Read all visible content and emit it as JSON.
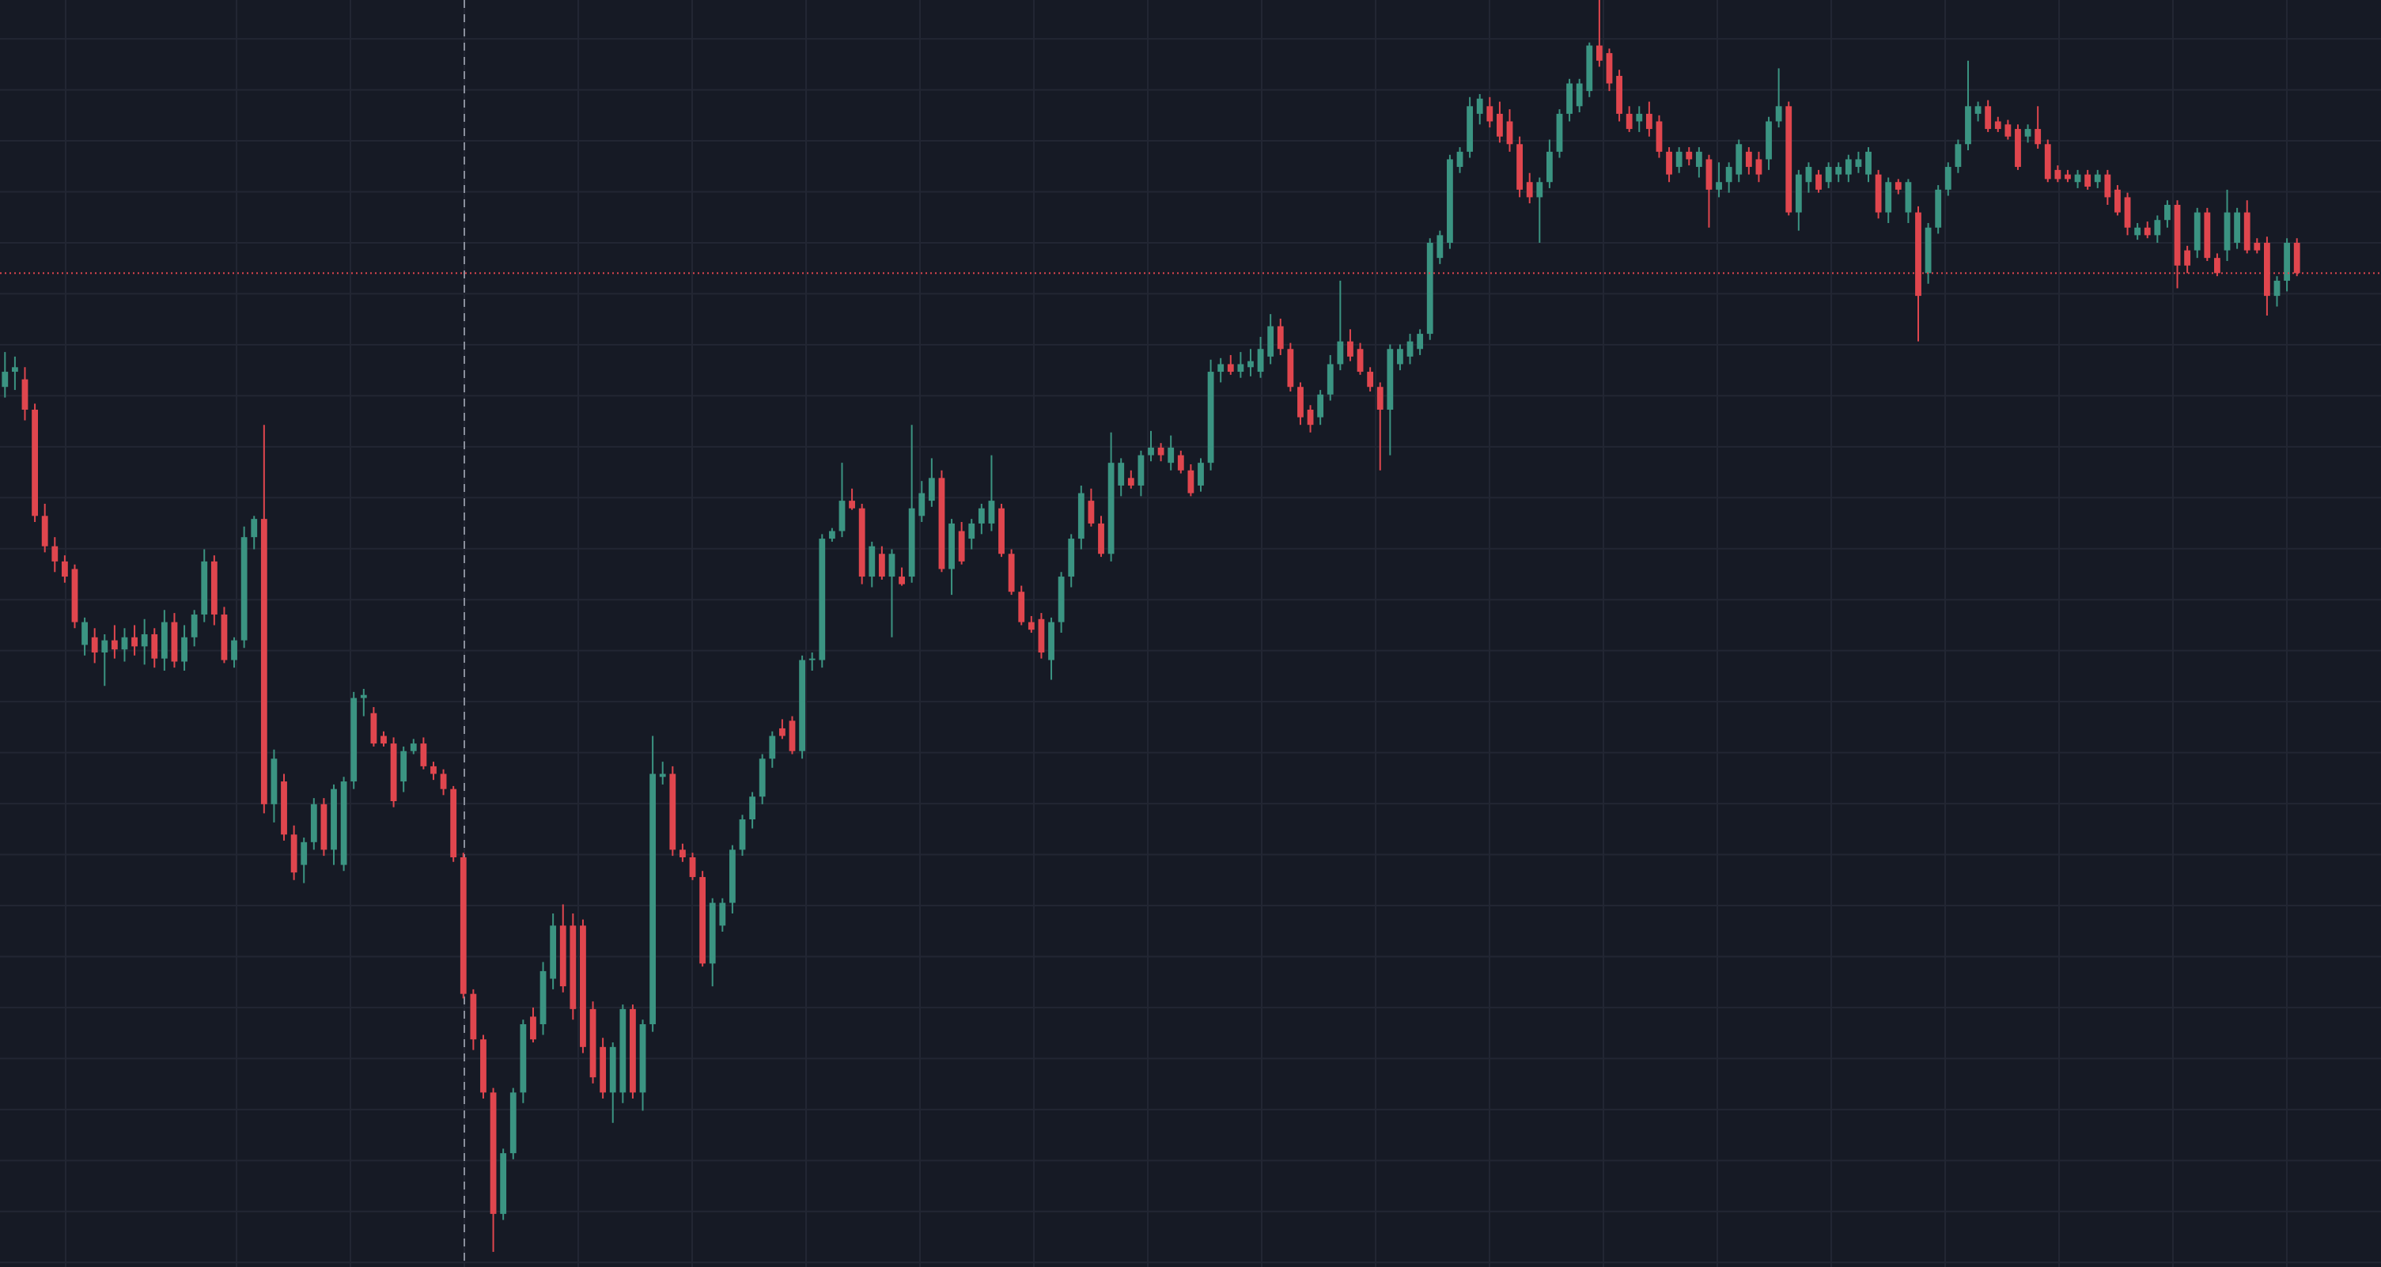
{
  "chart_data": {
    "type": "candlestick",
    "up_color": "#3b9482",
    "down_color": "#e0464e",
    "price_line_color": "#e0464e",
    "ylim": [
      -3,
      832
    ],
    "yticks": [
      0,
      33.6,
      67.2,
      100.8,
      134.4,
      168,
      201.6,
      235.2,
      268.8,
      302.4,
      336,
      369.6,
      403.2,
      436.8,
      470.4,
      504,
      537.6,
      571.2,
      604.8,
      638.4,
      672,
      705.6,
      739.2,
      772.8,
      806.4
    ],
    "grid": true,
    "price_line": 652,
    "candles": [
      [
        577,
        600,
        570,
        587
      ],
      [
        587,
        597,
        575,
        590
      ],
      [
        582,
        590,
        555,
        562
      ],
      [
        562,
        566,
        488,
        492
      ],
      [
        492,
        500,
        468,
        472
      ],
      [
        472,
        478,
        455,
        462
      ],
      [
        462,
        466,
        448,
        452
      ],
      [
        457,
        460,
        418,
        422
      ],
      [
        407,
        425,
        400,
        422
      ],
      [
        412,
        418,
        395,
        402
      ],
      [
        402,
        414,
        380,
        410
      ],
      [
        410,
        420,
        398,
        404
      ],
      [
        404,
        418,
        396,
        412
      ],
      [
        412,
        420,
        400,
        406
      ],
      [
        406,
        424,
        394,
        414
      ],
      [
        414,
        418,
        392,
        398
      ],
      [
        398,
        430,
        390,
        422
      ],
      [
        422,
        428,
        392,
        396
      ],
      [
        396,
        420,
        390,
        412
      ],
      [
        412,
        430,
        406,
        427
      ],
      [
        427,
        470,
        422,
        462
      ],
      [
        462,
        466,
        420,
        427
      ],
      [
        427,
        432,
        395,
        397
      ],
      [
        397,
        412,
        392,
        410
      ],
      [
        410,
        485,
        405,
        478
      ],
      [
        478,
        492,
        470,
        490
      ],
      [
        490,
        552,
        296,
        302
      ],
      [
        302,
        338,
        290,
        332
      ],
      [
        317,
        322,
        278,
        282
      ],
      [
        282,
        288,
        252,
        257
      ],
      [
        262,
        280,
        250,
        277
      ],
      [
        277,
        306,
        272,
        302
      ],
      [
        302,
        306,
        268,
        272
      ],
      [
        272,
        315,
        262,
        312
      ],
      [
        262,
        320,
        258,
        317
      ],
      [
        317,
        376,
        312,
        372
      ],
      [
        372,
        378,
        360,
        374
      ],
      [
        362,
        366,
        340,
        342
      ],
      [
        347,
        350,
        340,
        342
      ],
      [
        342,
        346,
        300,
        304
      ],
      [
        317,
        340,
        310,
        337
      ],
      [
        337,
        345,
        335,
        342
      ],
      [
        342,
        346,
        325,
        327
      ],
      [
        327,
        330,
        318,
        322
      ],
      [
        322,
        325,
        308,
        312
      ],
      [
        312,
        314,
        264,
        267
      ],
      [
        267,
        270,
        174,
        177
      ],
      [
        177,
        180,
        140,
        147
      ],
      [
        147,
        150,
        108,
        112
      ],
      [
        112,
        115,
        7,
        32
      ],
      [
        32,
        75,
        28,
        72
      ],
      [
        72,
        115,
        68,
        112
      ],
      [
        112,
        160,
        105,
        157
      ],
      [
        162,
        168,
        145,
        147
      ],
      [
        157,
        198,
        150,
        192
      ],
      [
        187,
        230,
        180,
        222
      ],
      [
        222,
        236,
        178,
        182
      ],
      [
        222,
        230,
        160,
        167
      ],
      [
        222,
        226,
        138,
        142
      ],
      [
        167,
        172,
        118,
        122
      ],
      [
        142,
        148,
        108,
        112
      ],
      [
        112,
        145,
        92,
        142
      ],
      [
        112,
        170,
        105,
        167
      ],
      [
        167,
        170,
        108,
        112
      ],
      [
        112,
        160,
        100,
        157
      ],
      [
        157,
        347,
        152,
        322
      ],
      [
        320,
        330,
        315,
        322
      ],
      [
        322,
        327,
        268,
        272
      ],
      [
        272,
        276,
        264,
        267
      ],
      [
        267,
        270,
        252,
        254
      ],
      [
        254,
        258,
        195,
        197
      ],
      [
        197,
        240,
        182,
        237
      ],
      [
        222,
        240,
        218,
        237
      ],
      [
        237,
        275,
        230,
        272
      ],
      [
        272,
        295,
        268,
        292
      ],
      [
        292,
        310,
        286,
        307
      ],
      [
        307,
        335,
        302,
        332
      ],
      [
        332,
        350,
        326,
        347
      ],
      [
        352,
        358,
        345,
        347
      ],
      [
        357,
        360,
        335,
        337
      ],
      [
        337,
        400,
        332,
        397
      ],
      [
        397,
        402,
        390,
        398
      ],
      [
        397,
        480,
        392,
        477
      ],
      [
        477,
        484,
        475,
        482
      ],
      [
        482,
        527,
        478,
        502
      ],
      [
        502,
        510,
        496,
        497
      ],
      [
        497,
        500,
        447,
        452
      ],
      [
        452,
        475,
        445,
        472
      ],
      [
        467,
        472,
        450,
        452
      ],
      [
        452,
        470,
        412,
        467
      ],
      [
        452,
        458,
        446,
        447
      ],
      [
        452,
        552,
        448,
        497
      ],
      [
        492,
        515,
        488,
        507
      ],
      [
        502,
        530,
        498,
        517
      ],
      [
        517,
        522,
        455,
        457
      ],
      [
        457,
        490,
        440,
        487
      ],
      [
        482,
        488,
        460,
        462
      ],
      [
        477,
        490,
        470,
        487
      ],
      [
        487,
        500,
        480,
        497
      ],
      [
        487,
        532,
        482,
        502
      ],
      [
        497,
        500,
        465,
        467
      ],
      [
        467,
        470,
        440,
        442
      ],
      [
        442,
        446,
        420,
        422
      ],
      [
        422,
        426,
        415,
        417
      ],
      [
        424,
        428,
        398,
        402
      ],
      [
        397,
        425,
        384,
        422
      ],
      [
        422,
        455,
        415,
        452
      ],
      [
        452,
        480,
        445,
        477
      ],
      [
        477,
        512,
        470,
        507
      ],
      [
        502,
        510,
        485,
        487
      ],
      [
        487,
        492,
        465,
        467
      ],
      [
        467,
        547,
        462,
        527
      ],
      [
        512,
        530,
        505,
        527
      ],
      [
        517,
        522,
        510,
        512
      ],
      [
        512,
        535,
        505,
        532
      ],
      [
        532,
        548,
        528,
        537
      ],
      [
        537,
        540,
        528,
        532
      ],
      [
        527,
        545,
        522,
        537
      ],
      [
        532,
        535,
        520,
        522
      ],
      [
        522,
        526,
        505,
        507
      ],
      [
        512,
        530,
        508,
        527
      ],
      [
        527,
        595,
        522,
        587
      ],
      [
        587,
        596,
        580,
        592
      ],
      [
        592,
        598,
        585,
        587
      ],
      [
        587,
        600,
        583,
        592
      ],
      [
        590,
        602,
        584,
        594
      ],
      [
        587,
        610,
        583,
        602
      ],
      [
        597,
        625,
        592,
        617
      ],
      [
        617,
        622,
        598,
        602
      ],
      [
        602,
        606,
        574,
        577
      ],
      [
        577,
        580,
        552,
        557
      ],
      [
        562,
        565,
        547,
        552
      ],
      [
        557,
        575,
        552,
        572
      ],
      [
        572,
        598,
        568,
        592
      ],
      [
        592,
        647,
        588,
        607
      ],
      [
        607,
        615,
        594,
        597
      ],
      [
        602,
        606,
        585,
        587
      ],
      [
        587,
        590,
        574,
        577
      ],
      [
        577,
        580,
        522,
        562
      ],
      [
        562,
        605,
        532,
        602
      ],
      [
        592,
        605,
        588,
        602
      ],
      [
        597,
        612,
        592,
        607
      ],
      [
        602,
        615,
        598,
        612
      ],
      [
        612,
        675,
        608,
        672
      ],
      [
        662,
        680,
        658,
        677
      ],
      [
        672,
        730,
        668,
        727
      ],
      [
        722,
        735,
        718,
        732
      ],
      [
        732,
        768,
        728,
        762
      ],
      [
        757,
        770,
        750,
        767
      ],
      [
        762,
        768,
        748,
        752
      ],
      [
        757,
        765,
        738,
        742
      ],
      [
        752,
        760,
        732,
        737
      ],
      [
        737,
        742,
        702,
        707
      ],
      [
        712,
        718,
        698,
        702
      ],
      [
        702,
        715,
        672,
        712
      ],
      [
        712,
        740,
        708,
        732
      ],
      [
        732,
        760,
        728,
        757
      ],
      [
        757,
        780,
        752,
        777
      ],
      [
        762,
        780,
        758,
        777
      ],
      [
        772,
        804,
        768,
        802
      ],
      [
        802,
        832,
        788,
        792
      ],
      [
        797,
        800,
        772,
        777
      ],
      [
        782,
        786,
        752,
        757
      ],
      [
        757,
        762,
        745,
        747
      ],
      [
        752,
        762,
        745,
        757
      ],
      [
        757,
        765,
        742,
        747
      ],
      [
        752,
        756,
        728,
        732
      ],
      [
        732,
        735,
        712,
        717
      ],
      [
        722,
        735,
        718,
        732
      ],
      [
        732,
        735,
        723,
        727
      ],
      [
        722,
        735,
        715,
        732
      ],
      [
        727,
        730,
        682,
        707
      ],
      [
        707,
        725,
        702,
        712
      ],
      [
        712,
        725,
        705,
        722
      ],
      [
        717,
        740,
        712,
        737
      ],
      [
        732,
        735,
        717,
        722
      ],
      [
        727,
        732,
        712,
        717
      ],
      [
        727,
        755,
        720,
        752
      ],
      [
        752,
        787,
        748,
        762
      ],
      [
        762,
        765,
        690,
        692
      ],
      [
        692,
        720,
        680,
        717
      ],
      [
        712,
        725,
        705,
        722
      ],
      [
        717,
        720,
        705,
        707
      ],
      [
        712,
        725,
        708,
        722
      ],
      [
        717,
        725,
        712,
        722
      ],
      [
        717,
        730,
        712,
        727
      ],
      [
        722,
        732,
        718,
        727
      ],
      [
        717,
        735,
        712,
        732
      ],
      [
        717,
        720,
        688,
        692
      ],
      [
        692,
        715,
        685,
        712
      ],
      [
        712,
        714,
        704,
        707
      ],
      [
        692,
        714,
        685,
        712
      ],
      [
        692,
        696,
        607,
        637
      ],
      [
        652,
        685,
        645,
        682
      ],
      [
        682,
        710,
        678,
        707
      ],
      [
        707,
        725,
        703,
        722
      ],
      [
        722,
        740,
        718,
        737
      ],
      [
        737,
        792,
        733,
        762
      ],
      [
        757,
        765,
        752,
        762
      ],
      [
        762,
        766,
        745,
        747
      ],
      [
        752,
        755,
        745,
        747
      ],
      [
        750,
        753,
        740,
        742
      ],
      [
        747,
        750,
        720,
        722
      ],
      [
        742,
        750,
        738,
        747
      ],
      [
        747,
        762,
        734,
        737
      ],
      [
        737,
        740,
        712,
        714
      ],
      [
        720,
        723,
        712,
        714
      ],
      [
        717,
        720,
        712,
        714
      ],
      [
        712,
        720,
        708,
        717
      ],
      [
        717,
        720,
        707,
        709
      ],
      [
        712,
        720,
        708,
        717
      ],
      [
        717,
        720,
        697,
        702
      ],
      [
        707,
        710,
        690,
        692
      ],
      [
        702,
        705,
        677,
        682
      ],
      [
        677,
        685,
        674,
        682
      ],
      [
        682,
        686,
        675,
        677
      ],
      [
        677,
        690,
        672,
        687
      ],
      [
        687,
        700,
        682,
        697
      ],
      [
        697,
        700,
        642,
        657
      ],
      [
        667,
        670,
        652,
        657
      ],
      [
        667,
        695,
        662,
        692
      ],
      [
        692,
        695,
        660,
        662
      ],
      [
        662,
        665,
        650,
        652
      ],
      [
        667,
        707,
        660,
        692
      ],
      [
        672,
        695,
        668,
        692
      ],
      [
        692,
        700,
        665,
        667
      ],
      [
        672,
        675,
        665,
        667
      ],
      [
        672,
        676,
        624,
        637
      ],
      [
        637,
        650,
        630,
        647
      ],
      [
        647,
        675,
        640,
        672
      ],
      [
        672,
        675,
        650,
        652
      ]
    ]
  }
}
